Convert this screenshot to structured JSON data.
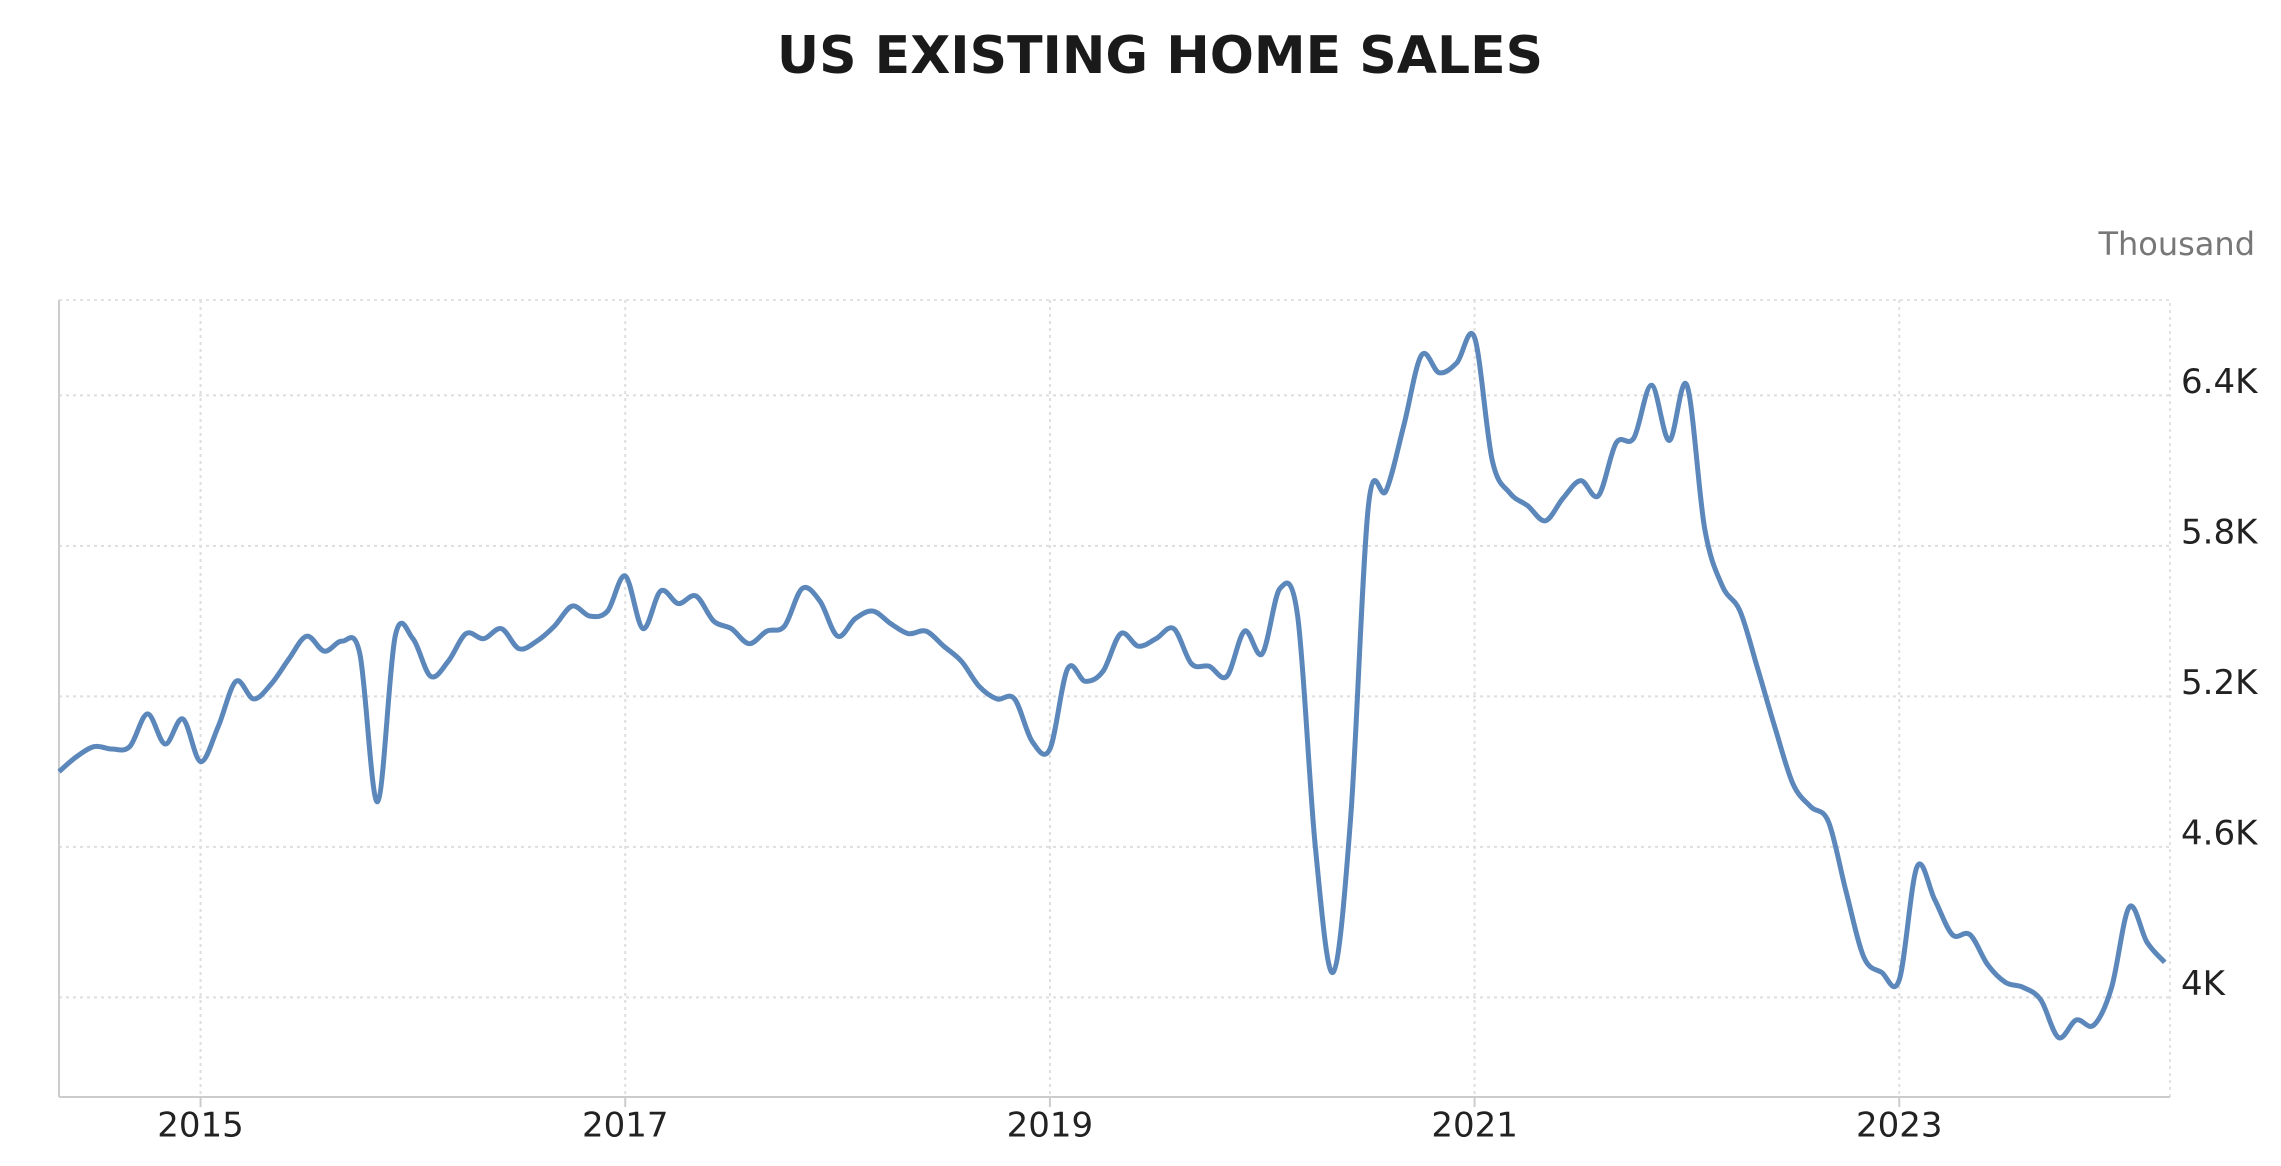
{
  "chart_data": {
    "type": "line",
    "title": "US EXISTING HOME SALES",
    "unit_label": "Thousand",
    "categories": [
      null,
      null,
      null,
      null,
      null,
      null,
      null,
      null,
      "2015",
      null,
      null,
      null,
      null,
      null,
      null,
      null,
      null,
      null,
      null,
      null,
      null,
      null,
      null,
      null,
      null,
      null,
      null,
      null,
      null,
      null,
      null,
      null,
      "2017",
      null,
      null,
      null,
      null,
      null,
      null,
      null,
      null,
      null,
      null,
      null,
      null,
      null,
      null,
      null,
      null,
      null,
      null,
      null,
      null,
      null,
      null,
      null,
      "2019",
      null,
      null,
      null,
      null,
      null,
      null,
      null,
      null,
      null,
      null,
      null,
      null,
      null,
      null,
      null,
      null,
      null,
      null,
      null,
      null,
      null,
      null,
      null,
      "2021",
      null,
      null,
      null,
      null,
      null,
      null,
      null,
      null,
      null,
      null,
      null,
      null,
      null,
      null,
      null,
      null,
      null,
      null,
      null,
      null,
      null,
      null,
      null,
      "2023",
      null,
      null,
      null,
      null,
      null,
      null,
      null,
      null,
      null,
      null,
      null,
      null,
      null,
      null,
      null
    ],
    "series": [
      {
        "name": "Existing Home Sales",
        "color": "#5b87bb",
        "values": [
          4900,
          4960,
          5000,
          4990,
          5000,
          5130,
          5010,
          5110,
          4940,
          5080,
          5260,
          5190,
          5250,
          5350,
          5440,
          5380,
          5420,
          5370,
          4780,
          5440,
          5430,
          5280,
          5340,
          5450,
          5430,
          5470,
          5390,
          5420,
          5480,
          5560,
          5520,
          5540,
          5680,
          5470,
          5620,
          5570,
          5600,
          5500,
          5470,
          5410,
          5460,
          5480,
          5630,
          5580,
          5440,
          5510,
          5540,
          5490,
          5450,
          5460,
          5400,
          5340,
          5240,
          5190,
          5190,
          5020,
          4990,
          5310,
          5260,
          5300,
          5450,
          5400,
          5430,
          5470,
          5330,
          5320,
          5280,
          5460,
          5370,
          5630,
          5520,
          4600,
          4100,
          4720,
          5960,
          6020,
          6280,
          6560,
          6490,
          6530,
          6630,
          6140,
          6010,
          5960,
          5900,
          5990,
          6060,
          6000,
          6210,
          6230,
          6440,
          6220,
          6440,
          5870,
          5640,
          5540,
          5310,
          5070,
          4850,
          4760,
          4700,
          4420,
          4160,
          4100,
          4070,
          4520,
          4390,
          4250,
          4250,
          4130,
          4060,
          4040,
          3990,
          3840,
          3910,
          3890,
          4040,
          4360,
          4220,
          4140
        ]
      }
    ],
    "ylim": [
      3603,
      6780
    ],
    "yticks": [
      {
        "value": 4000,
        "label": "4K"
      },
      {
        "value": 4600,
        "label": "4.6K"
      },
      {
        "value": 5200,
        "label": "5.2K"
      },
      {
        "value": 5800,
        "label": "5.8K"
      },
      {
        "value": 6400,
        "label": "6.4K"
      }
    ],
    "grid": true
  }
}
